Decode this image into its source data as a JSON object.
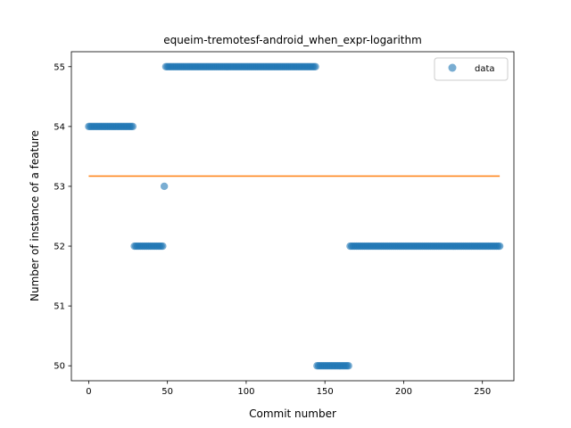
{
  "chart_data": {
    "type": "scatter",
    "title": "equeim-tremotesf-android_when_expr-logarithm",
    "xlabel": "Commit number",
    "ylabel": "Number of instance of a feature",
    "xlim": [
      -11,
      270
    ],
    "ylim": [
      49.75,
      55.25
    ],
    "xticks": [
      0,
      50,
      100,
      150,
      200,
      250
    ],
    "yticks": [
      50,
      51,
      52,
      53,
      54,
      55
    ],
    "grid": false,
    "legend": {
      "placement": "top-right",
      "entries": [
        "data"
      ]
    },
    "colors": {
      "data": "#1f77b4",
      "fit": "#ff7f0e"
    },
    "series": [
      {
        "name": "data",
        "kind": "scatter",
        "segments": [
          {
            "x_start": 0,
            "x_end": 28,
            "y": 54
          },
          {
            "x_start": 29,
            "x_end": 47,
            "y": 52
          },
          {
            "x_start": 48,
            "x_end": 48,
            "y": 53
          },
          {
            "x_start": 49,
            "x_end": 144,
            "y": 55
          },
          {
            "x_start": 145,
            "x_end": 165,
            "y": 50
          },
          {
            "x_start": 166,
            "x_end": 261,
            "y": 52
          }
        ]
      },
      {
        "kind": "line",
        "x": [
          0,
          261
        ],
        "y": [
          53.17,
          53.17
        ]
      }
    ]
  }
}
